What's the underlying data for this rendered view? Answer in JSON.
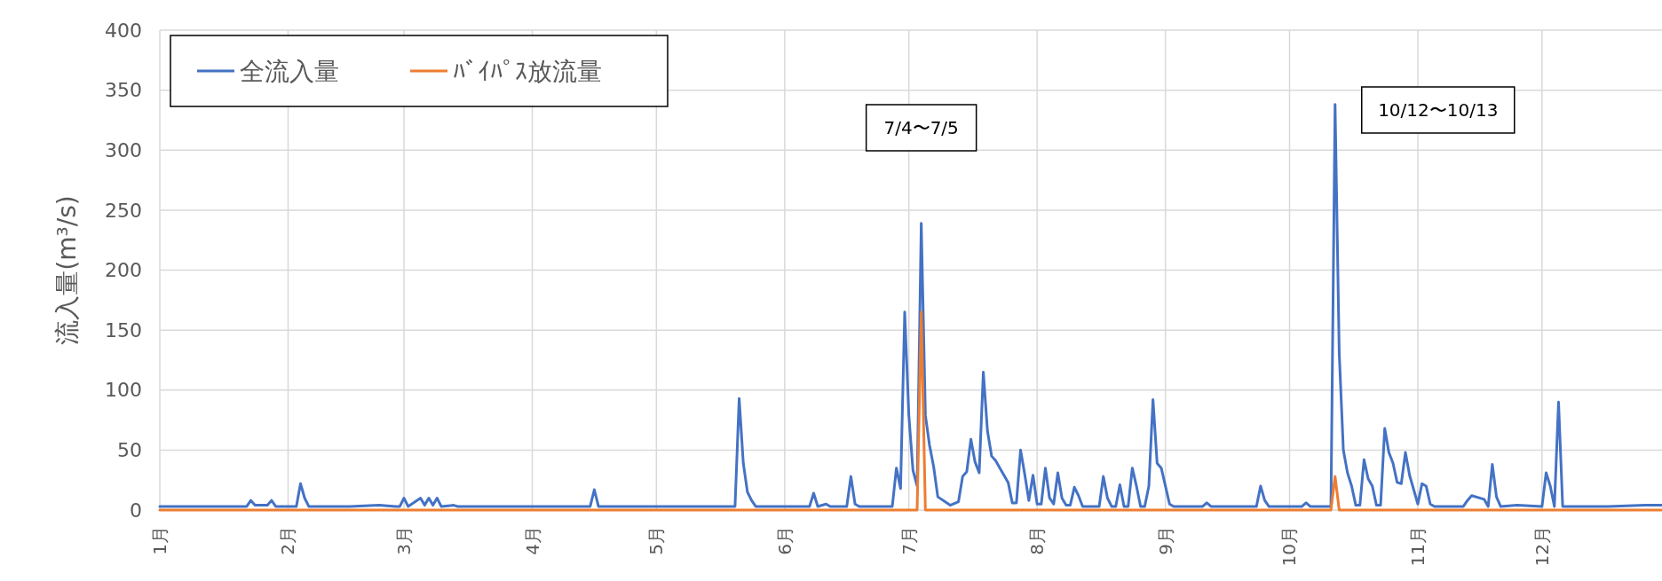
{
  "chart_data": {
    "type": "line",
    "ylabel": "流入量(m³/s)",
    "x": [
      "--01-01",
      "--01-10",
      "--01-17",
      "--01-22",
      "--01-23",
      "--01-24",
      "--01-27",
      "--01-28",
      "--01-29",
      "--02-03",
      "--02-04",
      "--02-05",
      "--02-06",
      "--02-16",
      "--02-23",
      "--02-27",
      "--02-28",
      "--03-01",
      "--03-02",
      "--03-05",
      "--03-06",
      "--03-07",
      "--03-08",
      "--03-09",
      "--03-10",
      "--03-13",
      "--03-14",
      "--04-04",
      "--04-15",
      "--04-16",
      "--04-17",
      "--05-05",
      "--05-19",
      "--05-20",
      "--05-21",
      "--05-22",
      "--05-23",
      "--05-24",
      "--05-25",
      "--06-05",
      "--06-07",
      "--06-08",
      "--06-09",
      "--06-11",
      "--06-12",
      "--06-16",
      "--06-17",
      "--06-18",
      "--06-19",
      "--06-27",
      "--06-28",
      "--06-29",
      "--06-30",
      "--07-01",
      "--07-02",
      "--07-03",
      "--07-04",
      "--07-05",
      "--07-06",
      "--07-07",
      "--07-08",
      "--07-11",
      "--07-13",
      "--07-14",
      "--07-15",
      "--07-16",
      "--07-17",
      "--07-18",
      "--07-19",
      "--07-20",
      "--07-21",
      "--07-22",
      "--07-23",
      "--07-25",
      "--07-26",
      "--07-27",
      "--07-28",
      "--07-29",
      "--07-30",
      "--07-31",
      "--08-01",
      "--08-02",
      "--08-03",
      "--08-04",
      "--08-05",
      "--08-06",
      "--08-07",
      "--08-08",
      "--08-09",
      "--08-10",
      "--08-11",
      "--08-12",
      "--08-16",
      "--08-17",
      "--08-18",
      "--08-19",
      "--08-20",
      "--08-21",
      "--08-22",
      "--08-23",
      "--08-24",
      "--08-25",
      "--08-26",
      "--08-27",
      "--08-28",
      "--08-29",
      "--08-30",
      "--08-31",
      "--09-01",
      "--09-02",
      "--09-03",
      "--09-10",
      "--09-11",
      "--09-12",
      "--09-23",
      "--09-24",
      "--09-25",
      "--09-26",
      "--10-04",
      "--10-05",
      "--10-06",
      "--10-11",
      "--10-12",
      "--10-13",
      "--10-14",
      "--10-15",
      "--10-16",
      "--10-17",
      "--10-18",
      "--10-19",
      "--10-20",
      "--10-21",
      "--10-22",
      "--10-23",
      "--10-24",
      "--10-25",
      "--10-26",
      "--10-27",
      "--10-28",
      "--10-29",
      "--10-30",
      "--10-31",
      "--11-01",
      "--11-02",
      "--11-03",
      "--11-04",
      "--11-05",
      "--11-12",
      "--11-13",
      "--11-14",
      "--11-17",
      "--11-18",
      "--11-19",
      "--11-20",
      "--11-21",
      "--11-25",
      "--12-01",
      "--12-02",
      "--12-03",
      "--12-04",
      "--12-05",
      "--12-06",
      "--12-17",
      "--12-26",
      "--12-30"
    ],
    "series": [
      {
        "name": "全流入量",
        "color": "#4472c4",
        "values": [
          3,
          3,
          3,
          3,
          8,
          4,
          4,
          8,
          3,
          3,
          22,
          10,
          3,
          3,
          4,
          3,
          3,
          10,
          3,
          10,
          4,
          10,
          4,
          10,
          3,
          4,
          3,
          3,
          3,
          17,
          3,
          3,
          3,
          3,
          93,
          39,
          15,
          8,
          3,
          3,
          3,
          14,
          3,
          5,
          3,
          3,
          28,
          5,
          3,
          3,
          35,
          18,
          165,
          79,
          33,
          20,
          239,
          79,
          54,
          36,
          11,
          4,
          7,
          28,
          32,
          59,
          40,
          31,
          115,
          66,
          45,
          41,
          35,
          23,
          6,
          6,
          50,
          30,
          8,
          29,
          5,
          5,
          35,
          10,
          5,
          31,
          10,
          4,
          4,
          19,
          12,
          3,
          3,
          28,
          10,
          3,
          3,
          21,
          3,
          3,
          35,
          20,
          3,
          3,
          20,
          92,
          39,
          35,
          20,
          5,
          3,
          3,
          6,
          3,
          3,
          20,
          8,
          3,
          3,
          6,
          3,
          3,
          338,
          131,
          50,
          31,
          20,
          4,
          4,
          42,
          26,
          20,
          4,
          4,
          68,
          48,
          39,
          23,
          22,
          48,
          29,
          17,
          5,
          22,
          20,
          5,
          3,
          3,
          8,
          12,
          9,
          3,
          38,
          11,
          3,
          4,
          3,
          31,
          20,
          3,
          90,
          3,
          3,
          4,
          4
        ]
      },
      {
        "name": "ﾊﾞｲﾊﾟｽ放流量",
        "color": "#ed7d31",
        "x": [
          "--01-01",
          "--07-03",
          "--07-04",
          "--07-05",
          "--10-11",
          "--10-12",
          "--10-13",
          "--12-30"
        ],
        "values": [
          0,
          0,
          165,
          0,
          0,
          28,
          0,
          0
        ]
      }
    ],
    "xlim": [
      "--01-01",
      "--12-30"
    ],
    "xticks": [
      {
        "value": "--01-01",
        "label": "1月"
      },
      {
        "value": "--02-01",
        "label": "2月"
      },
      {
        "value": "--03-01",
        "label": "3月"
      },
      {
        "value": "--04-01",
        "label": "4月"
      },
      {
        "value": "--05-01",
        "label": "5月"
      },
      {
        "value": "--06-01",
        "label": "6月"
      },
      {
        "value": "--07-01",
        "label": "7月"
      },
      {
        "value": "--08-01",
        "label": "8月"
      },
      {
        "value": "--09-01",
        "label": "9月"
      },
      {
        "value": "--10-01",
        "label": "10月"
      },
      {
        "value": "--11-01",
        "label": "11月"
      },
      {
        "value": "--12-01",
        "label": "12月"
      }
    ],
    "ylim": [
      0,
      400
    ],
    "yticks": [
      0,
      50,
      100,
      150,
      200,
      250,
      300,
      350,
      400
    ],
    "grid": true,
    "legend": "top left",
    "marker": "none",
    "line_style": "solid",
    "annotations": [
      "7/4〜7/5",
      "10/12〜10/13"
    ]
  }
}
